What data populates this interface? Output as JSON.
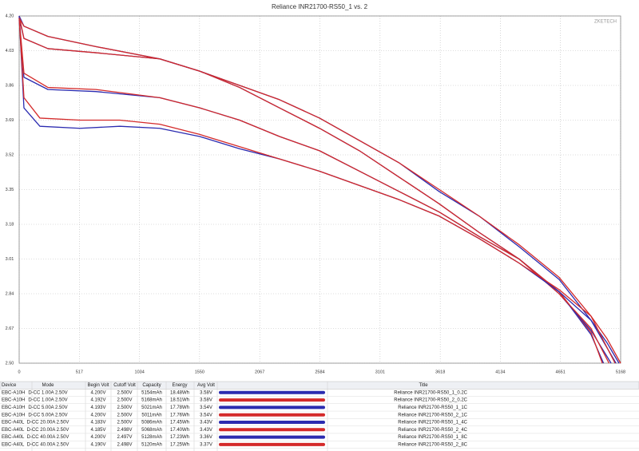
{
  "chart_data": {
    "type": "line",
    "title": "Reliance INR21700-RS50_1 vs. 2",
    "watermark": "ZKETECH",
    "xlim": [
      0,
      5168
    ],
    "xticks": [
      0,
      517,
      1034,
      1550,
      2067,
      2584,
      3101,
      3618,
      4134,
      4651,
      5168
    ],
    "ylim": [
      2.5,
      4.2
    ],
    "yticks": [
      {
        "value": 4.2,
        "label": "4.20"
      },
      4.03,
      3.86,
      3.69,
      3.52,
      3.35,
      3.18,
      3.01,
      2.84,
      2.67,
      {
        "value": 2.5,
        "label": "2.50"
      }
    ],
    "grid": true,
    "series": [
      {
        "name": "Reliance INR21700-RS50_1_0.2C",
        "color": "#2b2bb0",
        "x": [
          0,
          41,
          247,
          659,
          1208,
          1551,
          1894,
          2237,
          2581,
          2924,
          3267,
          3610,
          3953,
          4296,
          4640,
          4914,
          5051,
          5154
        ],
        "values": [
          4.2,
          4.15,
          4.1,
          4.05,
          3.99,
          3.93,
          3.86,
          3.79,
          3.7,
          3.59,
          3.48,
          3.34,
          3.22,
          3.07,
          2.91,
          2.71,
          2.6,
          2.5
        ]
      },
      {
        "name": "Reliance INR21700-RS50_2_0.2C",
        "color": "#d42a2a",
        "x": [
          0,
          41,
          247,
          659,
          1208,
          1551,
          1894,
          2237,
          2581,
          2924,
          3267,
          3610,
          3953,
          4296,
          4640,
          4914,
          5051,
          5168
        ],
        "values": [
          4.19,
          4.15,
          4.1,
          4.05,
          3.99,
          3.93,
          3.86,
          3.79,
          3.7,
          3.59,
          3.48,
          3.35,
          3.22,
          3.08,
          2.92,
          2.73,
          2.62,
          2.5
        ]
      },
      {
        "name": "Reliance INR21700-RS50_1_1C",
        "color": "#2b2bb0",
        "x": [
          0,
          41,
          247,
          659,
          1208,
          1551,
          1894,
          2237,
          2581,
          2924,
          3267,
          3610,
          3953,
          4296,
          4640,
          4914,
          5021
        ],
        "values": [
          4.19,
          4.09,
          4.04,
          4.02,
          3.99,
          3.93,
          3.85,
          3.75,
          3.65,
          3.54,
          3.41,
          3.28,
          3.14,
          3.01,
          2.85,
          2.64,
          2.5
        ]
      },
      {
        "name": "Reliance INR21700-RS50_2_1C",
        "color": "#d42a2a",
        "x": [
          0,
          41,
          247,
          659,
          1208,
          1551,
          1894,
          2237,
          2581,
          2924,
          3267,
          3610,
          3953,
          4296,
          4640,
          4914,
          5011
        ],
        "values": [
          4.2,
          4.09,
          4.04,
          4.02,
          3.99,
          3.93,
          3.85,
          3.75,
          3.65,
          3.54,
          3.41,
          3.28,
          3.14,
          3.01,
          2.85,
          2.65,
          2.5
        ]
      },
      {
        "name": "Reliance INR21700-RS50_1_4C",
        "color": "#2b2bb0",
        "x": [
          0,
          41,
          247,
          659,
          1208,
          1551,
          1894,
          2237,
          2581,
          2924,
          3267,
          3610,
          3953,
          4296,
          4640,
          4914,
          5086
        ],
        "values": [
          4.18,
          3.9,
          3.84,
          3.83,
          3.8,
          3.75,
          3.69,
          3.61,
          3.54,
          3.44,
          3.34,
          3.24,
          3.12,
          3.01,
          2.84,
          2.66,
          2.5
        ]
      },
      {
        "name": "Reliance INR21700-RS50_2_4C",
        "color": "#d42a2a",
        "x": [
          0,
          41,
          247,
          659,
          1208,
          1551,
          1894,
          2237,
          2581,
          2924,
          3267,
          3610,
          3953,
          4296,
          4640,
          4914,
          5068
        ],
        "values": [
          4.19,
          3.92,
          3.85,
          3.84,
          3.8,
          3.75,
          3.69,
          3.61,
          3.54,
          3.44,
          3.34,
          3.24,
          3.12,
          3.01,
          2.84,
          2.67,
          2.5
        ]
      },
      {
        "name": "Reliance INR21700-RS50_1_8C",
        "color": "#2b2bb0",
        "x": [
          0,
          41,
          178,
          522,
          865,
          1208,
          1551,
          1894,
          2237,
          2581,
          2924,
          3267,
          3610,
          3953,
          4296,
          4640,
          4914,
          5128
        ],
        "values": [
          4.2,
          3.75,
          3.66,
          3.65,
          3.66,
          3.65,
          3.61,
          3.55,
          3.5,
          3.44,
          3.37,
          3.3,
          3.22,
          3.11,
          2.99,
          2.85,
          2.71,
          2.5
        ]
      },
      {
        "name": "Reliance INR21700-RS50_2_8C",
        "color": "#d42a2a",
        "x": [
          0,
          41,
          178,
          522,
          865,
          1208,
          1551,
          1894,
          2237,
          2581,
          2924,
          3267,
          3610,
          3953,
          4296,
          4640,
          4914,
          5120
        ],
        "values": [
          4.19,
          3.8,
          3.7,
          3.69,
          3.69,
          3.67,
          3.62,
          3.56,
          3.5,
          3.44,
          3.37,
          3.3,
          3.22,
          3.11,
          2.99,
          2.86,
          2.73,
          2.5
        ]
      }
    ]
  },
  "table": {
    "header": [
      "Device",
      "Mode",
      "Begin Volt",
      "Cutoff Volt",
      "Capacity",
      "Energy",
      "Avg Volt",
      "Title"
    ],
    "rows": [
      [
        "EBC-A10H",
        "D-CC 1.00A 2.50V",
        "4.200V",
        "2.500V",
        "5154mAh",
        "18.48Wh",
        "3.58V"
      ],
      [
        "EBC-A10H",
        "D-CC 1.00A 2.50V",
        "4.192V",
        "2.500V",
        "5168mAh",
        "18.51Wh",
        "3.58V"
      ],
      [
        "EBC-A10H",
        "D-CC 5.00A 2.50V",
        "4.193V",
        "2.500V",
        "5021mAh",
        "17.78Wh",
        "3.54V"
      ],
      [
        "EBC-A10H",
        "D-CC 5.00A 2.50V",
        "4.200V",
        "2.500V",
        "5011mAh",
        "17.76Wh",
        "3.54V"
      ],
      [
        "EBC-A40L",
        "D-CC 20.00A 2.50V",
        "4.183V",
        "2.500V",
        "5086mAh",
        "17.45Wh",
        "3.43V"
      ],
      [
        "EBC-A40L",
        "D-CC 20.00A 2.50V",
        "4.185V",
        "2.498V",
        "5068mAh",
        "17.40Wh",
        "3.43V"
      ],
      [
        "EBC-A40L",
        "D-CC 40.00A 2.50V",
        "4.200V",
        "2.497V",
        "5128mAh",
        "17.23Wh",
        "3.36V"
      ],
      [
        "EBC-A40L",
        "D-CC 40.00A 2.50V",
        "4.190V",
        "2.498V",
        "5120mAh",
        "17.25Wh",
        "3.37V"
      ]
    ]
  }
}
